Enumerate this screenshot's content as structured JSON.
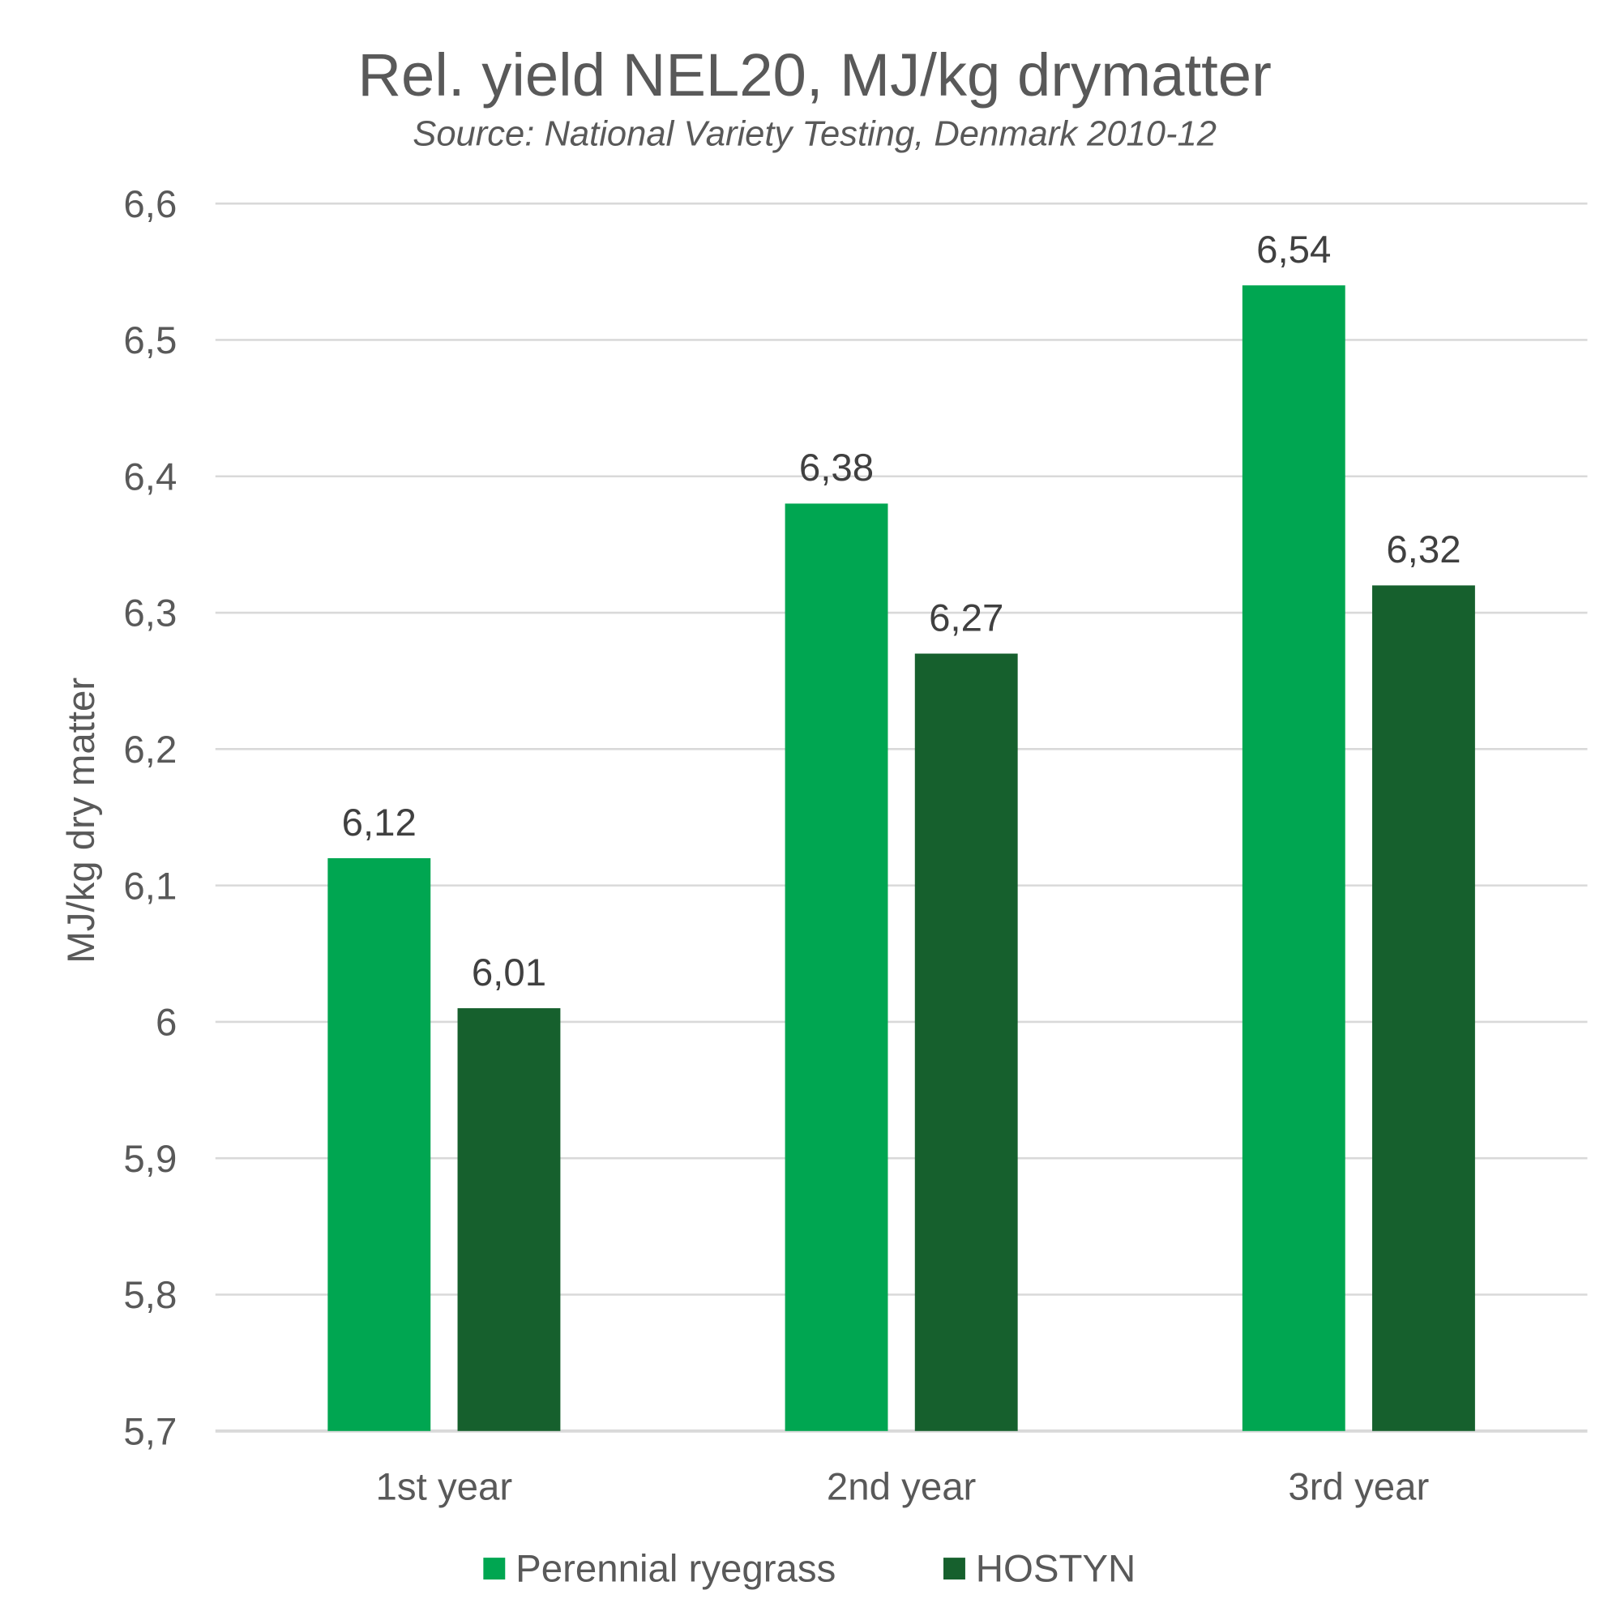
{
  "chart_data": {
    "type": "bar",
    "title": "Rel. yield NEL20, MJ/kg drymatter",
    "subtitle": "Source: National Variety Testing, Denmark 2010-12",
    "xlabel": "",
    "ylabel": "MJ/kg dry matter",
    "ylim": [
      5.7,
      6.6
    ],
    "yticks": [
      5.7,
      5.8,
      5.9,
      6.0,
      6.1,
      6.2,
      6.3,
      6.4,
      6.5,
      6.6
    ],
    "ytick_labels": [
      "5,7",
      "5,8",
      "5,9",
      "6",
      "6,1",
      "6,2",
      "6,3",
      "6,4",
      "6,5",
      "6,6"
    ],
    "grid": true,
    "legend_position": "bottom",
    "categories": [
      "1st year",
      "2nd year",
      "3rd year"
    ],
    "series": [
      {
        "name": "Perennial ryegrass",
        "color": "#00A651",
        "values": [
          6.12,
          6.38,
          6.54
        ],
        "labels": [
          "6,12",
          "6,38",
          "6,54"
        ]
      },
      {
        "name": "HOSTYN",
        "color": "#16602D",
        "values": [
          6.01,
          6.27,
          6.32
        ],
        "labels": [
          "6,01",
          "6,27",
          "6,32"
        ]
      }
    ]
  }
}
